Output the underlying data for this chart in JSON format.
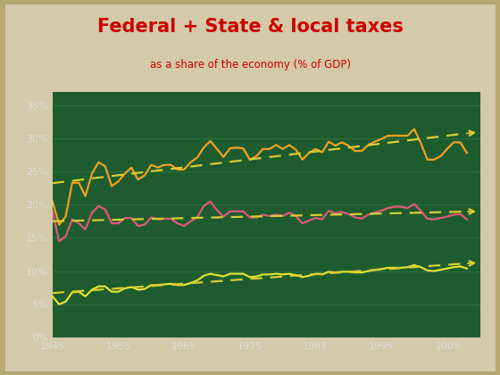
{
  "title": "Federal + State & local taxes",
  "subtitle": "as a share of the economy (% of GDP)",
  "title_color": "#cc0000",
  "subtitle_color": "#cc0000",
  "fig_bg_color": "#d4c9a8",
  "header_bg_color": "#f5f0e0",
  "plot_bg_color": "#1e5c30",
  "grid_color": "#2d7040",
  "axis_line_color": "#aaaaaa",
  "tick_color": "#dddddd",
  "years": [
    1945,
    1946,
    1947,
    1948,
    1949,
    1950,
    1951,
    1952,
    1953,
    1954,
    1955,
    1956,
    1957,
    1958,
    1959,
    1960,
    1961,
    1962,
    1963,
    1964,
    1965,
    1966,
    1967,
    1968,
    1969,
    1970,
    1971,
    1972,
    1973,
    1974,
    1975,
    1976,
    1977,
    1978,
    1979,
    1980,
    1981,
    1982,
    1983,
    1984,
    1985,
    1986,
    1987,
    1988,
    1989,
    1990,
    1991,
    1992,
    1993,
    1994,
    1995,
    1996,
    1997,
    1998,
    1999,
    2000,
    2001,
    2002,
    2003,
    2004,
    2005,
    2006,
    2007,
    2008
  ],
  "orange_data": [
    0.205,
    0.17,
    0.182,
    0.233,
    0.233,
    0.213,
    0.247,
    0.264,
    0.258,
    0.228,
    0.235,
    0.247,
    0.256,
    0.238,
    0.244,
    0.26,
    0.256,
    0.26,
    0.26,
    0.253,
    0.253,
    0.264,
    0.271,
    0.286,
    0.296,
    0.284,
    0.272,
    0.285,
    0.286,
    0.285,
    0.268,
    0.273,
    0.284,
    0.284,
    0.29,
    0.284,
    0.29,
    0.283,
    0.268,
    0.278,
    0.284,
    0.279,
    0.295,
    0.289,
    0.294,
    0.289,
    0.281,
    0.281,
    0.29,
    0.295,
    0.299,
    0.304,
    0.304,
    0.304,
    0.304,
    0.314,
    0.293,
    0.268,
    0.268,
    0.273,
    0.284,
    0.294,
    0.294,
    0.278
  ],
  "red_data": [
    0.19,
    0.145,
    0.152,
    0.178,
    0.172,
    0.163,
    0.188,
    0.198,
    0.193,
    0.172,
    0.172,
    0.18,
    0.18,
    0.168,
    0.17,
    0.181,
    0.178,
    0.179,
    0.179,
    0.172,
    0.168,
    0.175,
    0.181,
    0.198,
    0.205,
    0.192,
    0.182,
    0.19,
    0.19,
    0.19,
    0.181,
    0.181,
    0.185,
    0.183,
    0.185,
    0.183,
    0.188,
    0.183,
    0.172,
    0.176,
    0.18,
    0.178,
    0.191,
    0.187,
    0.189,
    0.186,
    0.181,
    0.179,
    0.185,
    0.188,
    0.191,
    0.195,
    0.197,
    0.197,
    0.195,
    0.201,
    0.191,
    0.179,
    0.178,
    0.18,
    0.182,
    0.185,
    0.186,
    0.178
  ],
  "yellow_data": [
    0.062,
    0.05,
    0.054,
    0.068,
    0.069,
    0.062,
    0.072,
    0.077,
    0.077,
    0.069,
    0.069,
    0.074,
    0.076,
    0.072,
    0.073,
    0.079,
    0.079,
    0.08,
    0.081,
    0.079,
    0.079,
    0.082,
    0.086,
    0.093,
    0.096,
    0.094,
    0.092,
    0.096,
    0.096,
    0.096,
    0.091,
    0.092,
    0.095,
    0.095,
    0.096,
    0.095,
    0.096,
    0.094,
    0.091,
    0.093,
    0.096,
    0.095,
    0.099,
    0.098,
    0.099,
    0.099,
    0.098,
    0.098,
    0.1,
    0.102,
    0.103,
    0.105,
    0.105,
    0.105,
    0.106,
    0.109,
    0.106,
    0.101,
    0.1,
    0.102,
    0.104,
    0.106,
    0.107,
    0.104
  ],
  "orange_color": "#f0a020",
  "red_color": "#e05878",
  "yellow_color": "#e0e030",
  "trend_color": "#d8cc30",
  "xlim": [
    1945,
    2010
  ],
  "ylim": [
    0.0,
    0.37
  ],
  "xticks": [
    1945,
    1955,
    1965,
    1975,
    1985,
    1995,
    2005
  ],
  "yticks": [
    0.0,
    0.05,
    0.1,
    0.15,
    0.2,
    0.25,
    0.3,
    0.35
  ],
  "ytick_labels": [
    "0%",
    "5%",
    "10%",
    "15%",
    "20%",
    "25%",
    "30%",
    "35%"
  ]
}
